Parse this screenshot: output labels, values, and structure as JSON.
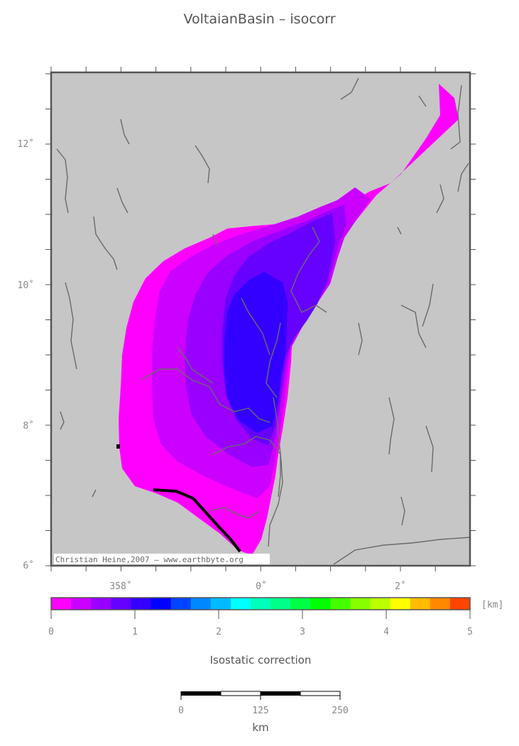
{
  "title": "VoltaianBasin – isocorr",
  "map": {
    "lat_labels": [
      "12˚",
      "10˚",
      "8˚",
      "6˚"
    ],
    "lon_labels": [
      "358˚",
      "0˚",
      "2˚"
    ],
    "credit": "Christian Heine,2007 – www.earthbyte.org",
    "background_color": "#c6c6c6",
    "river_color": "#6a6a6a"
  },
  "colorbar": {
    "unit": "[km]",
    "labels": [
      "0",
      "1",
      "2",
      "3",
      "4",
      "5"
    ],
    "colors": [
      "#ff00ff",
      "#cc00ff",
      "#9900ff",
      "#6600ff",
      "#3300ff",
      "#0000ff",
      "#0044ff",
      "#0088ff",
      "#00bbff",
      "#00ffff",
      "#00ffbb",
      "#00ff88",
      "#00ff44",
      "#00ff00",
      "#44ff00",
      "#88ff00",
      "#bbff00",
      "#ffff00",
      "#ffbb00",
      "#ff8800",
      "#ff4400"
    ],
    "caption": "Isostatic correction"
  },
  "scalebar": {
    "labels": [
      "0",
      "125",
      "250"
    ],
    "unit": "km"
  }
}
